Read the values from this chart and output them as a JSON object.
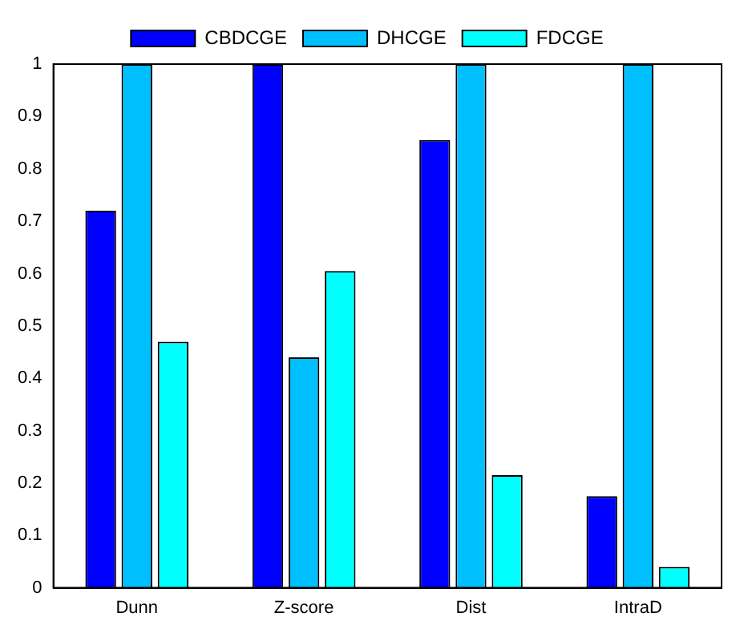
{
  "chart_data": {
    "type": "bar",
    "categories": [
      "Dunn",
      "Z-score",
      "Dist",
      "IntraD"
    ],
    "series": [
      {
        "name": "CBDCGE",
        "color": "#0000ff",
        "values": [
          0.72,
          1,
          0.855,
          0.175
        ]
      },
      {
        "name": "DHCGE",
        "color": "#00bfff",
        "values": [
          1,
          0.44,
          1,
          1
        ]
      },
      {
        "name": "FDCGE",
        "color": "#00ffff",
        "values": [
          0.47,
          0.605,
          0.215,
          0.04
        ]
      }
    ],
    "ylim": [
      0,
      1
    ],
    "yticks": [
      0,
      0.1,
      0.2,
      0.3,
      0.4,
      0.5,
      0.6,
      0.7,
      0.8,
      0.9,
      1
    ],
    "grid": false,
    "legend": "top"
  }
}
